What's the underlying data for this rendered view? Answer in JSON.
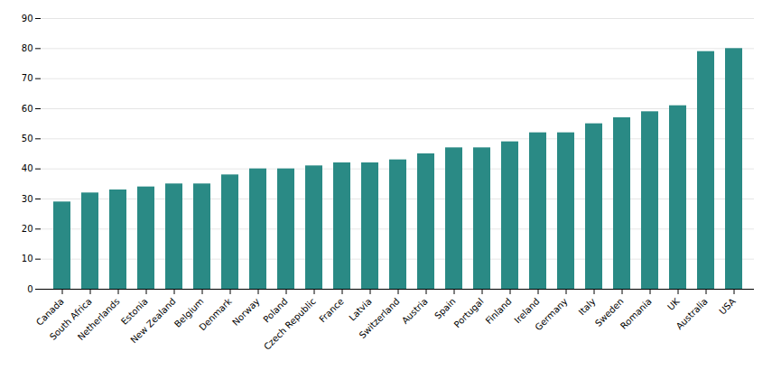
{
  "chart_data": {
    "type": "bar",
    "categories": [
      "Canada",
      "South Africa",
      "Netherlands",
      "Estonia",
      "New Zealand",
      "Belgium",
      "Denmark",
      "Norway",
      "Poland",
      "Czech Republic",
      "France",
      "Latvia",
      "Switzerland",
      "Austria",
      "Spain",
      "Portugal",
      "Finland",
      "Ireland",
      "Germany",
      "Italy",
      "Sweden",
      "Romania",
      "UK",
      "Australia",
      "USA"
    ],
    "values": [
      29,
      32,
      33,
      34,
      35,
      35,
      38,
      40,
      40,
      41,
      42,
      42,
      43,
      45,
      47,
      47,
      49,
      52,
      52,
      55,
      57,
      59,
      61,
      79,
      80
    ],
    "color": "#2a8a85",
    "ylim": [
      0,
      90
    ],
    "yticks": [
      0,
      10,
      20,
      30,
      40,
      50,
      60,
      70,
      80,
      90
    ],
    "grid": true
  }
}
